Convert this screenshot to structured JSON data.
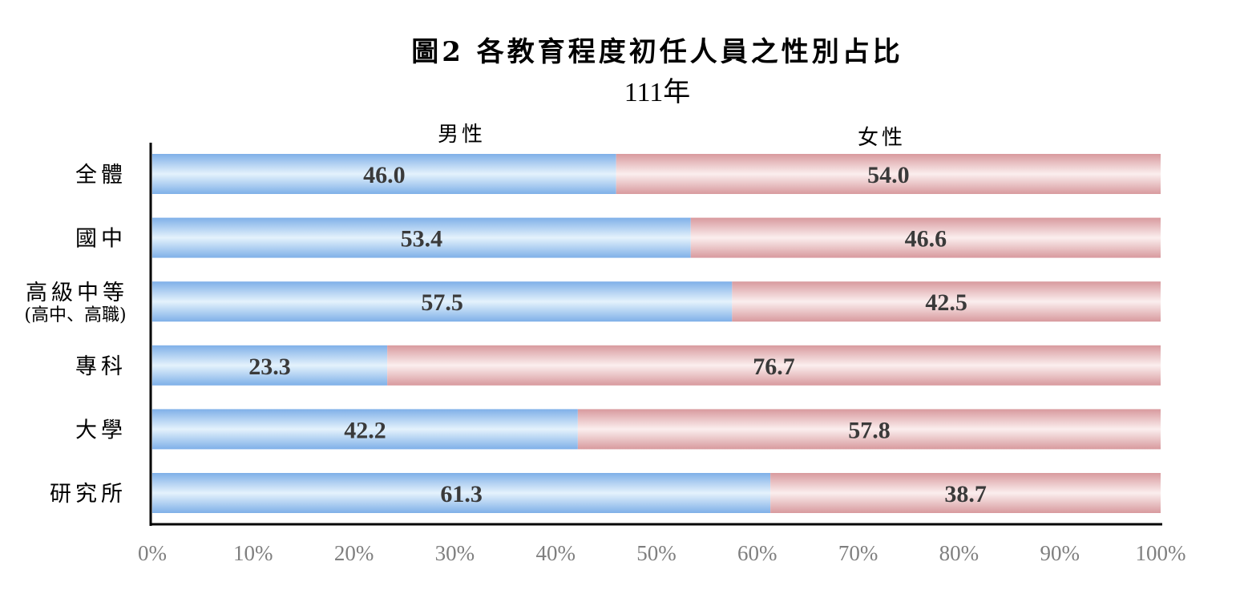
{
  "chart_data": {
    "type": "bar",
    "orientation": "horizontal",
    "stacked": "100%",
    "title": "圖2 各教育程度初任人員之性別占比",
    "subtitle": "111年",
    "categories": [
      "全體",
      "國中",
      "高級中等",
      "專科",
      "大學",
      "研究所"
    ],
    "category_sublabels": [
      "",
      "",
      "(高中、高職)",
      "",
      "",
      ""
    ],
    "series": [
      {
        "name": "男性",
        "color": "#9cc3ec",
        "values": [
          46.0,
          53.4,
          57.5,
          23.3,
          42.2,
          61.3
        ],
        "labels": [
          "46.0",
          "53.4",
          "57.5",
          "23.3",
          "42.2",
          "61.3"
        ]
      },
      {
        "name": "女性",
        "color": "#e4b4b7",
        "values": [
          54.0,
          46.6,
          42.5,
          76.7,
          57.8,
          38.7
        ],
        "labels": [
          "54.0",
          "46.6",
          "42.5",
          "76.7",
          "57.8",
          "38.7"
        ]
      }
    ],
    "xlim": [
      0,
      100
    ],
    "x_ticks": [
      "0%",
      "10%",
      "20%",
      "30%",
      "40%",
      "50%",
      "60%",
      "70%",
      "80%",
      "90%",
      "100%"
    ],
    "grid": false,
    "legend": "above bars"
  }
}
